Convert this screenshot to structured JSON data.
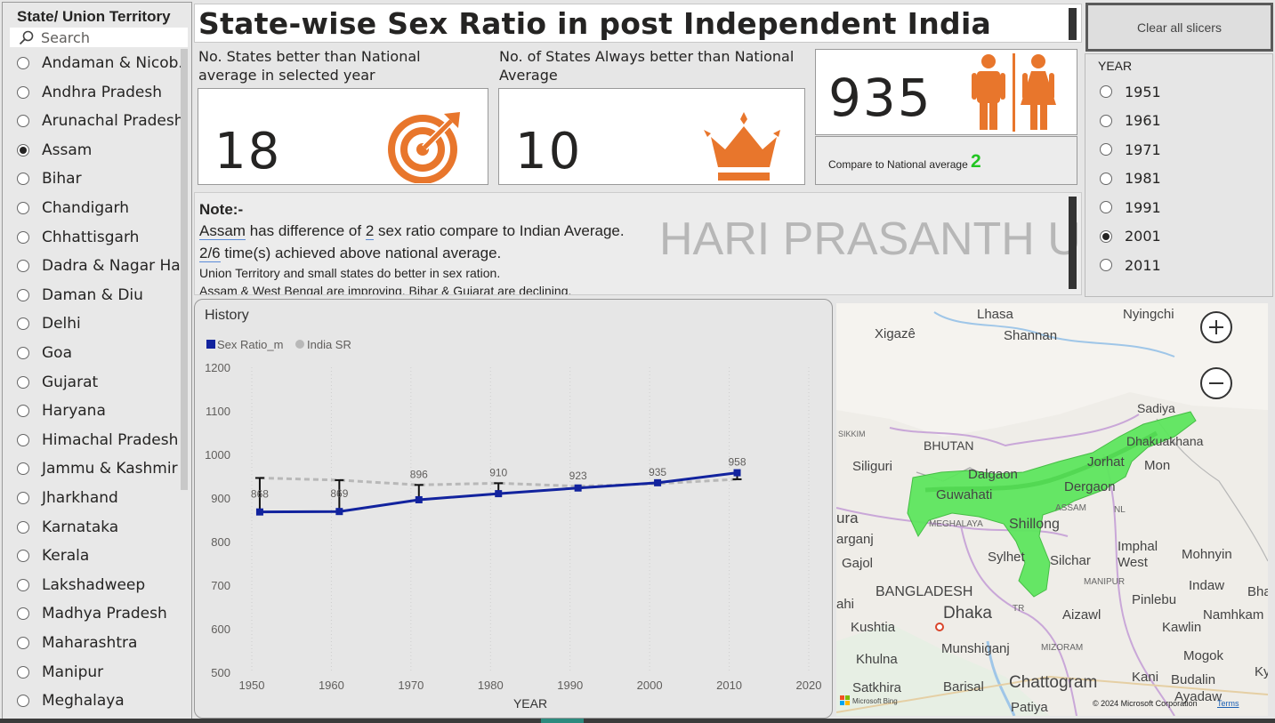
{
  "slicer": {
    "title": "State/ Union Territory",
    "search_placeholder": "Search",
    "items": [
      {
        "label": "Andaman & Nicob...",
        "selected": false
      },
      {
        "label": "Andhra Pradesh",
        "selected": false
      },
      {
        "label": "Arunachal Pradesh",
        "selected": false
      },
      {
        "label": "Assam",
        "selected": true
      },
      {
        "label": "Bihar",
        "selected": false
      },
      {
        "label": "Chandigarh",
        "selected": false
      },
      {
        "label": "Chhattisgarh",
        "selected": false
      },
      {
        "label": "Dadra & Nagar Ha...",
        "selected": false
      },
      {
        "label": "Daman & Diu",
        "selected": false
      },
      {
        "label": "Delhi",
        "selected": false
      },
      {
        "label": "Goa",
        "selected": false
      },
      {
        "label": "Gujarat",
        "selected": false
      },
      {
        "label": "Haryana",
        "selected": false
      },
      {
        "label": "Himachal Pradesh",
        "selected": false
      },
      {
        "label": "Jammu & Kashmir",
        "selected": false
      },
      {
        "label": "Jharkhand",
        "selected": false
      },
      {
        "label": "Karnataka",
        "selected": false
      },
      {
        "label": "Kerala",
        "selected": false
      },
      {
        "label": "Lakshadweep",
        "selected": false
      },
      {
        "label": "Madhya Pradesh",
        "selected": false
      },
      {
        "label": "Maharashtra",
        "selected": false
      },
      {
        "label": "Manipur",
        "selected": false
      },
      {
        "label": "Meghalaya",
        "selected": false
      }
    ]
  },
  "header": {
    "title": "State-wise Sex Ratio in post Independent India",
    "clear_label": "Clear all slicers"
  },
  "year_slicer": {
    "title": "YEAR",
    "items": [
      {
        "label": "1951",
        "selected": false
      },
      {
        "label": "1961",
        "selected": false
      },
      {
        "label": "1971",
        "selected": false
      },
      {
        "label": "1981",
        "selected": false
      },
      {
        "label": "1991",
        "selected": false
      },
      {
        "label": "2001",
        "selected": true
      },
      {
        "label": "2011",
        "selected": false
      }
    ]
  },
  "kpis": {
    "better_label": "No. States better than National average in selected year",
    "better_value": "18",
    "always_label": "No. of States Always better than National Average",
    "always_value": "10",
    "sex_ratio_value": "935",
    "compare_label": "Compare to National average",
    "compare_value": "2",
    "accent": "#e8762c",
    "compare_color": "#22c522"
  },
  "note": {
    "heading": "Note:-",
    "state": "Assam",
    "line1_mid": " has difference of ",
    "diff": "2",
    "line1_end": " sex ratio compare to Indian Average.",
    "ratio": "2/6",
    "line2_end": " time(s) achieved above national average.",
    "line3": "Union Territory and small states do better in sex ration.",
    "line4": "Assam & West Bengal are improving, Bihar & Gujarat are declining.",
    "watermark": "HARI PRASANTH U"
  },
  "chart_data": {
    "type": "line",
    "title": "History",
    "xlabel": "YEAR",
    "ylabel": "",
    "x": [
      1951,
      1961,
      1971,
      1981,
      1991,
      2001,
      2011
    ],
    "series": [
      {
        "name": "Sex Ratio_m",
        "values": [
          868,
          869,
          896,
          910,
          923,
          935,
          958
        ],
        "color": "#12239e"
      },
      {
        "name": "India SR",
        "values": [
          946,
          941,
          930,
          934,
          927,
          933,
          943
        ],
        "color": "#b8b8b8"
      }
    ],
    "data_labels": [
      "868",
      "869",
      "896",
      "910",
      "923",
      "935",
      "958"
    ],
    "xlim": [
      1950,
      2020
    ],
    "ylim": [
      500,
      1200
    ],
    "x_ticks": [
      "1950",
      "1960",
      "1970",
      "1980",
      "1990",
      "2000",
      "2020"
    ],
    "x_tick_values": [
      1950,
      1960,
      1970,
      1980,
      1990,
      2000,
      2020
    ],
    "x_ticks_extra": {
      "label": "2010",
      "value": 2010
    },
    "y_ticks": [
      "1200",
      "1100",
      "1000",
      "900",
      "800",
      "700",
      "600",
      "500"
    ],
    "y_tick_values": [
      1200,
      1100,
      1000,
      900,
      800,
      700,
      600,
      500
    ],
    "legend_position": "top-left",
    "grid": "vertical dotted"
  },
  "map": {
    "labels": [
      "Lhasa",
      "Nyingchi",
      "Xigazê",
      "Shannan",
      "Sadiya",
      "SIKKIM",
      "BHUTAN",
      "Dhakuakhana",
      "Siliguri",
      "Dalgaon",
      "Jorhat",
      "Mon",
      "Guwahati",
      "Dergaon",
      "ASSAM",
      "NL",
      "ura",
      "MEGHALAYA",
      "Shillong",
      "arganj",
      "Imphal",
      "Mohnyin",
      "Gajol",
      "Sylhet",
      "Silchar",
      "West",
      "BANGLADESH",
      "MANIPUR",
      "Indaw",
      "Bha",
      "ahi",
      "Dhaka",
      "Pinlebu",
      "Kushtia",
      "TR",
      "Aizawl",
      "Namhkam",
      "Kawlin",
      "Munshiganj",
      "MIZORAM",
      "Khulna",
      "Mogok",
      "Kyau",
      "Kani",
      "Budalin",
      "Satkhira",
      "Barisal",
      "Chattogram",
      "Ayadaw",
      "Patiya"
    ],
    "copyright": "© 2024 Microsoft Corporation",
    "terms": "Terms",
    "brand": "Microsoft Bing",
    "highlight_color": "#5ee65e"
  }
}
